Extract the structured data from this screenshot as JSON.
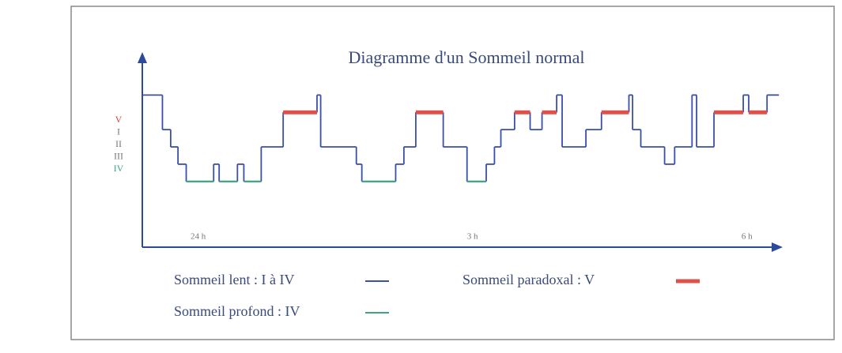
{
  "chart_data": {
    "type": "step",
    "title": "Diagramme d'un Sommeil normal",
    "series": [
      {
        "name": "Sommeil lent : I à IV",
        "color": "#3a4fa8",
        "x": [
          -0.61,
          -0.39,
          -0.3,
          -0.22,
          -0.13,
          0.17,
          0.23,
          0.43,
          0.5,
          0.69,
          0.93,
          1.3,
          1.34,
          1.73,
          1.79,
          2.16,
          2.25,
          2.38,
          2.68,
          2.94,
          3.15,
          3.24,
          3.31,
          3.46,
          3.63,
          3.76,
          3.92,
          3.98,
          4.24,
          4.41,
          4.71,
          4.75,
          4.84,
          5.1,
          5.21,
          5.4,
          5.45,
          5.64,
          5.96,
          6.02,
          6.22,
          6.35
        ],
        "values": [
          6,
          4,
          3,
          2,
          1,
          2,
          1,
          2,
          1,
          3,
          5,
          6,
          3,
          2,
          1,
          2,
          3,
          5,
          3,
          1,
          2,
          3,
          4,
          5,
          4,
          5,
          6,
          3,
          4,
          5,
          6,
          4,
          3,
          2,
          3,
          6,
          3,
          5,
          6,
          5,
          6,
          6
        ]
      }
    ],
    "highlights": [
      {
        "name": "Sommeil profond : IV",
        "color": "#3aa87a",
        "level": 1
      },
      {
        "name": "Sommeil paradoxal : V",
        "color": "#e0504a",
        "level": 5
      }
    ],
    "xlim": [
      -0.61,
      6.4
    ],
    "xticks": [
      {
        "value": 0,
        "label": "24 h"
      },
      {
        "value": 3,
        "label": "3 h"
      },
      {
        "value": 6,
        "label": "6 h"
      }
    ],
    "ylim": [
      -2.8,
      8.3
    ],
    "yticks": [
      {
        "value": 5,
        "label": "V"
      },
      {
        "value": 4,
        "label": "I"
      },
      {
        "value": 3,
        "label": "II"
      },
      {
        "value": 2,
        "label": "III"
      },
      {
        "value": 1,
        "label": "IV"
      }
    ],
    "ytick_colors": [
      "#d0463e",
      "#777777",
      "#777777",
      "#777777",
      "#3aa87a"
    ]
  }
}
